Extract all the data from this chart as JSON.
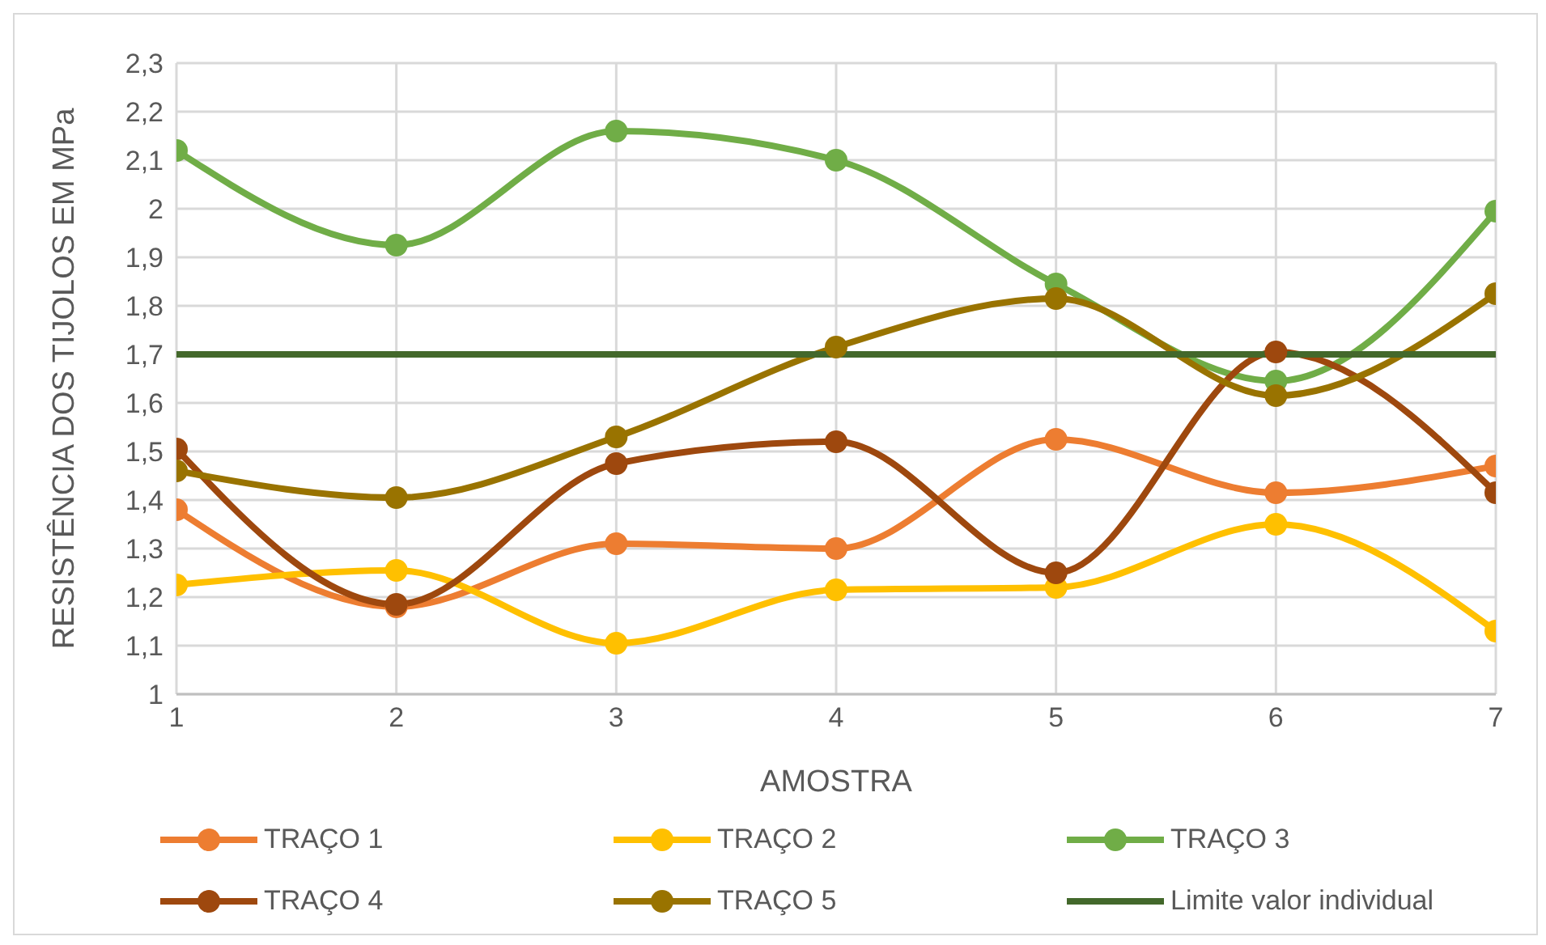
{
  "chart_data": {
    "type": "line",
    "xlabel": "AMOSTRA",
    "ylabel": "RESISTÊNCIA DOS TIJOLOS EM MPa",
    "x": [
      1,
      2,
      3,
      4,
      5,
      6,
      7
    ],
    "xlim": [
      1,
      7
    ],
    "xticks": [
      1,
      2,
      3,
      4,
      5,
      6,
      7
    ],
    "ylim": [
      1,
      2.3
    ],
    "yticks": [
      {
        "value": 1,
        "label": "1"
      },
      {
        "value": 1.1,
        "label": "1,1"
      },
      {
        "value": 1.2,
        "label": "1,2"
      },
      {
        "value": 1.3,
        "label": "1,3"
      },
      {
        "value": 1.4,
        "label": "1,4"
      },
      {
        "value": 1.5,
        "label": "1,5"
      },
      {
        "value": 1.6,
        "label": "1,6"
      },
      {
        "value": 1.7,
        "label": "1,7"
      },
      {
        "value": 1.8,
        "label": "1,8"
      },
      {
        "value": 1.9,
        "label": "1,9"
      },
      {
        "value": 2,
        "label": "2"
      },
      {
        "value": 2.1,
        "label": "2,1"
      },
      {
        "value": 2.2,
        "label": "2,2"
      },
      {
        "value": 2.3,
        "label": "2,3"
      }
    ],
    "grid": true,
    "legend": "bottom",
    "marker": "circle",
    "series": [
      {
        "name": "TRAÇO 1",
        "color": "#ed7d31",
        "values": [
          1.38,
          1.18,
          1.31,
          1.3,
          1.525,
          1.415,
          1.47
        ]
      },
      {
        "name": "TRAÇO 2",
        "color": "#ffc000",
        "values": [
          1.225,
          1.255,
          1.105,
          1.215,
          1.22,
          1.35,
          1.13
        ]
      },
      {
        "name": "TRAÇO 3",
        "color": "#70ad47",
        "values": [
          2.12,
          1.925,
          2.16,
          2.1,
          1.845,
          1.645,
          1.995
        ]
      },
      {
        "name": "TRAÇO 4",
        "color": "#9e480e",
        "values": [
          1.505,
          1.185,
          1.475,
          1.52,
          1.25,
          1.705,
          1.415
        ]
      },
      {
        "name": "TRAÇO 5",
        "color": "#997300",
        "values": [
          1.46,
          1.405,
          1.53,
          1.715,
          1.815,
          1.615,
          1.825
        ]
      },
      {
        "name": "Limite valor individual",
        "color": "#43682b",
        "marker": "none",
        "values": [
          1.7,
          1.7,
          1.7,
          1.7,
          1.7,
          1.7,
          1.7
        ]
      }
    ]
  }
}
